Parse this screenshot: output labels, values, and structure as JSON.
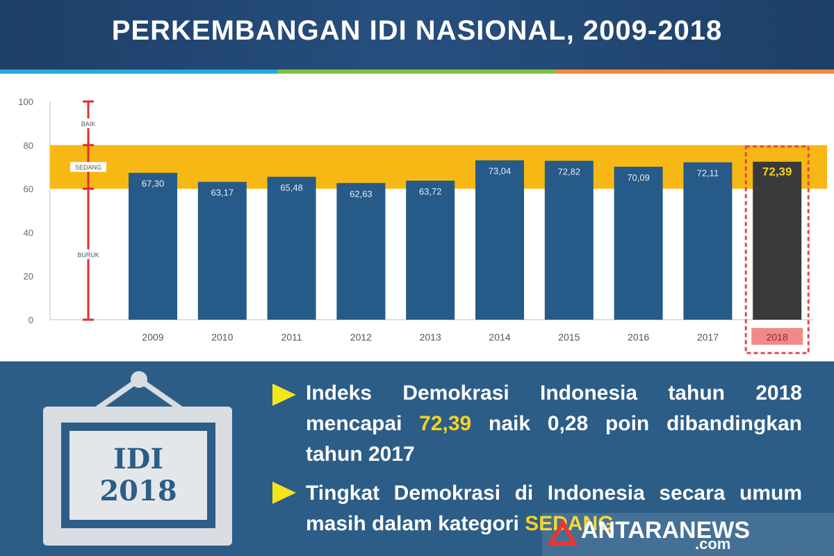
{
  "header": {
    "title": "PERKEMBANGAN IDI NASIONAL, 2009-2018"
  },
  "colors": {
    "bar": "#265a88",
    "highlight_bar": "#3a3a3a",
    "sedang_band": "#f7b816",
    "scale_line": "#e62b2b",
    "highlight_value": "#f5d21f",
    "highlight_box": "#e24a4a",
    "background": "#ffffff",
    "bottom_panel": "#2c5d87"
  },
  "chart_data": {
    "type": "bar",
    "categories": [
      "2009",
      "2010",
      "2011",
      "2012",
      "2013",
      "2014",
      "2015",
      "2016",
      "2017",
      "2018"
    ],
    "values": [
      67.3,
      63.17,
      65.48,
      62.63,
      63.72,
      73.04,
      72.82,
      70.09,
      72.11,
      72.39
    ],
    "value_labels": [
      "67,30",
      "63,17",
      "65,48",
      "62,63",
      "63,72",
      "73,04",
      "72,82",
      "70,09",
      "72,11",
      "72,39"
    ],
    "highlight_index": 9,
    "ylim": [
      0,
      100
    ],
    "yticks": [
      0,
      20,
      40,
      60,
      80,
      100
    ],
    "bands": [
      {
        "from": 60,
        "to": 80,
        "color": "#f7b816"
      }
    ],
    "scale_labels": [
      {
        "label": "BAIK",
        "from": 80,
        "to": 100
      },
      {
        "label": "SEDANG",
        "from": 60,
        "to": 80
      },
      {
        "label": "BURUK",
        "from": 0,
        "to": 60
      }
    ],
    "title": "",
    "xlabel": "",
    "ylabel": ""
  },
  "frame": {
    "line1": "IDI",
    "line2": "2018"
  },
  "bullets": [
    {
      "before": "Indeks Demokrasi Indonesia tahun 2018 mencapai ",
      "highlight": "72,39",
      "after": " naik 0,28 poin dibandingkan tahun 2017"
    },
    {
      "before": "Tingkat Demokrasi di Indonesia secara umum masih dalam kategori ",
      "highlight": "SEDANG",
      "after": ""
    }
  ],
  "watermark": {
    "text": "ANTARANEWS",
    "suffix": ".com"
  }
}
